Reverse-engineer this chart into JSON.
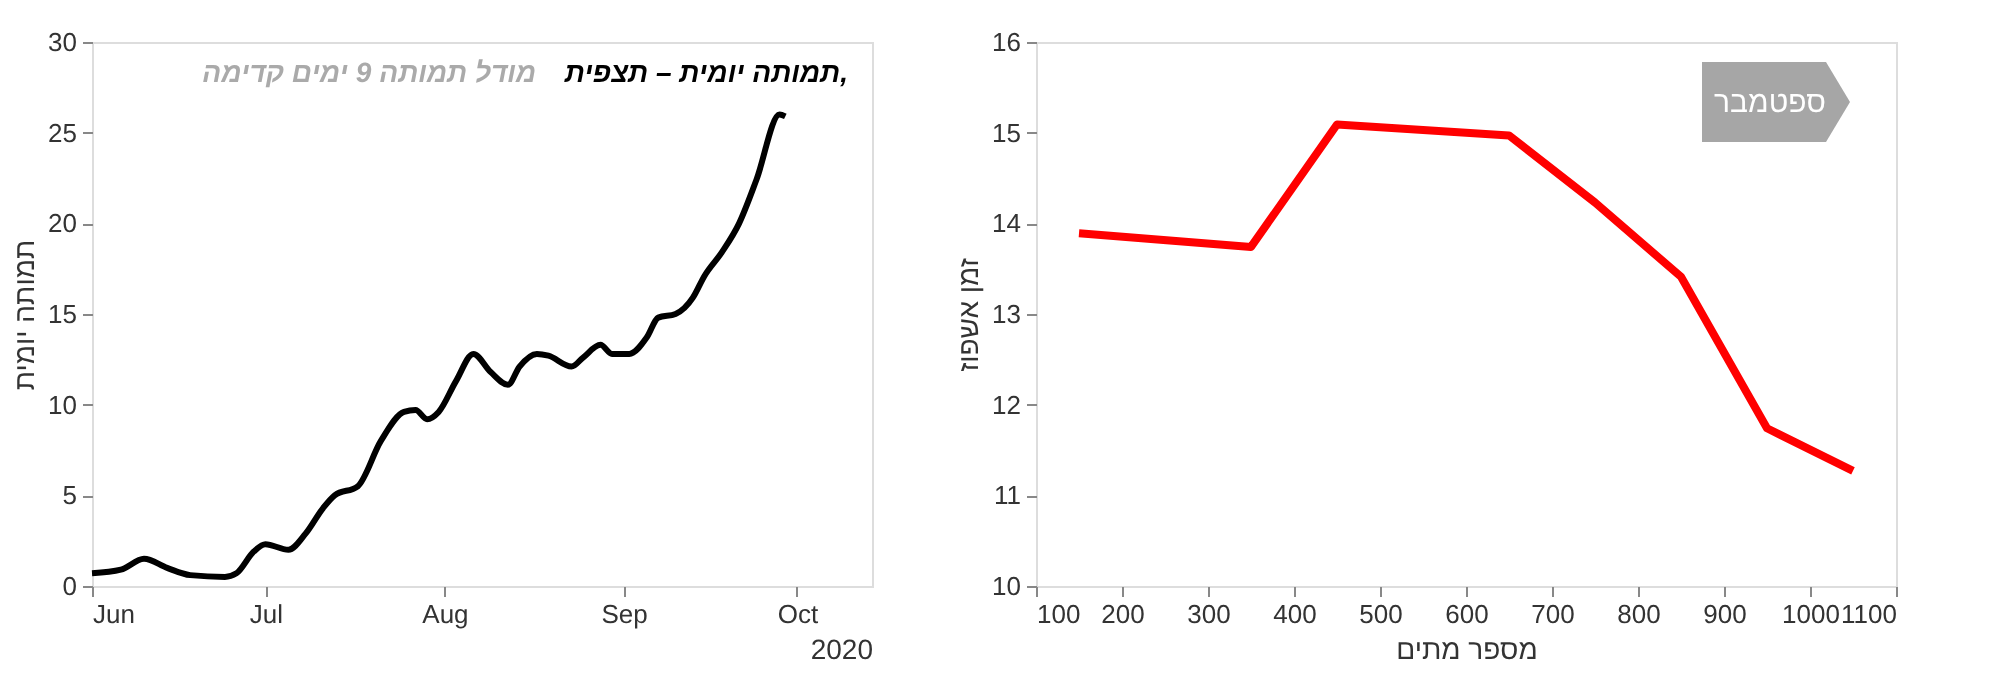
{
  "chart_data": [
    {
      "type": "line",
      "title": "תמותה יומית – תצפית,",
      "subtitle": "מודל תמותה 9 ימים קדימה",
      "ylabel": "תמותה יומית",
      "xlabel": "2020",
      "x": [
        "2020-06-01",
        "2020-06-06",
        "2020-06-10",
        "2020-06-14",
        "2020-06-18",
        "2020-06-24",
        "2020-06-26",
        "2020-06-29",
        "2020-07-01",
        "2020-07-05",
        "2020-07-08",
        "2020-07-11",
        "2020-07-13",
        "2020-07-17",
        "2020-07-21",
        "2020-07-25",
        "2020-07-27",
        "2020-07-29",
        "2020-07-31",
        "2020-08-03",
        "2020-08-06",
        "2020-08-09",
        "2020-08-12",
        "2020-08-14",
        "2020-08-17",
        "2020-08-19",
        "2020-08-23",
        "2020-08-25",
        "2020-08-28",
        "2020-08-30",
        "2020-09-02",
        "2020-09-05",
        "2020-09-07",
        "2020-09-10",
        "2020-09-13",
        "2020-09-15",
        "2020-09-18",
        "2020-09-21",
        "2020-09-24",
        "2020-09-28",
        "2020-09-29"
      ],
      "series": [
        {
          "color": "#000000",
          "values": [
            0.7,
            0.9,
            1.5,
            1.0,
            0.6,
            0.5,
            0.7,
            1.9,
            2.3,
            2.0,
            2.9,
            4.3,
            5.0,
            5.5,
            8.0,
            9.6,
            9.7,
            9.2,
            9.6,
            11.3,
            12.8,
            11.8,
            11.1,
            12.1,
            12.8,
            12.7,
            12.1,
            12.6,
            13.3,
            12.8,
            12.8,
            13.7,
            14.8,
            15.0,
            15.9,
            17.1,
            18.4,
            20.0,
            22.4,
            26.0,
            25.9
          ]
        }
      ],
      "xlim": [
        "2020-06-01",
        "2020-10-14"
      ],
      "xticks": [
        {
          "value": "2020-06-01",
          "label": "Jun"
        },
        {
          "value": "2020-07-01",
          "label": "Jul"
        },
        {
          "value": "2020-08-01",
          "label": "Aug"
        },
        {
          "value": "2020-09-01",
          "label": "Sep"
        },
        {
          "value": "2020-10-01",
          "label": "Oct"
        }
      ],
      "ylim": [
        0,
        30
      ],
      "yticks": [
        0,
        5,
        10,
        15,
        20,
        25,
        30
      ],
      "grid": false
    },
    {
      "type": "line",
      "xlabel": "מספר מתים",
      "ylabel": "זמן אשפוז",
      "annotations": [
        "ספטמבר"
      ],
      "x": [
        150,
        350,
        450,
        650,
        750,
        850,
        950,
        1050
      ],
      "series": [
        {
          "color": "#ff0000",
          "values": [
            13.89,
            13.74,
            15.09,
            14.97,
            14.23,
            13.41,
            11.74,
            11.27
          ]
        }
      ],
      "xlim": [
        100,
        1100
      ],
      "xticks": [
        100,
        200,
        300,
        400,
        500,
        600,
        700,
        800,
        900,
        1000,
        1100
      ],
      "ylim": [
        10,
        16
      ],
      "yticks": [
        10,
        11,
        12,
        13,
        14,
        15,
        16
      ],
      "grid": false
    }
  ]
}
